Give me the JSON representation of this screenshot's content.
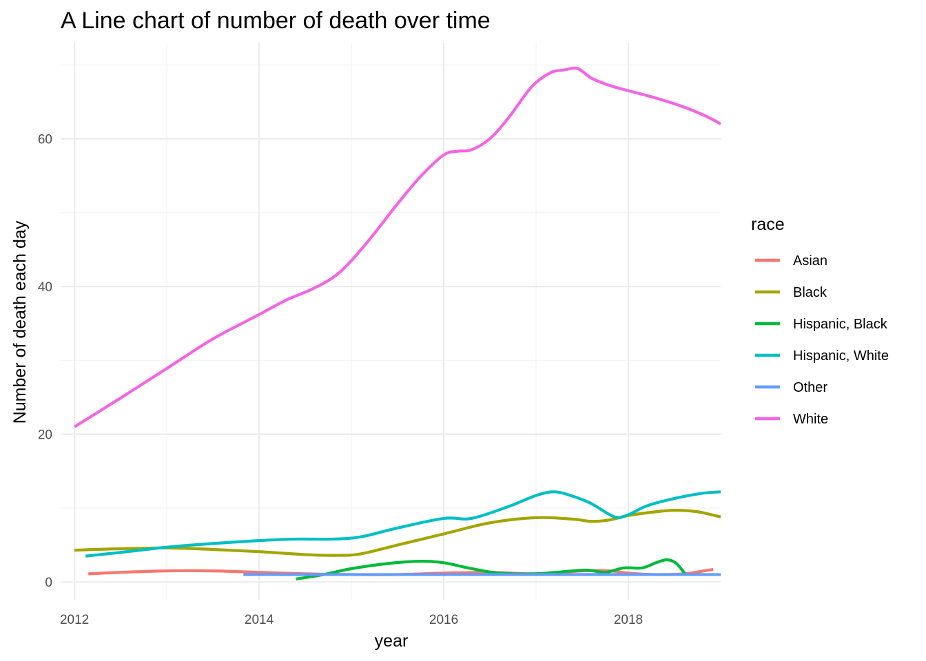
{
  "chart_data": {
    "type": "line",
    "title": "A Line chart of number of death over time",
    "xlabel": "year",
    "ylabel": "Number of death each day",
    "xlim": [
      2011.85,
      2019.0
    ],
    "ylim": [
      -2.5,
      73
    ],
    "x_ticks": [
      "2012",
      "2014",
      "2016",
      "2018"
    ],
    "y_ticks": [
      "0",
      "20",
      "40",
      "60"
    ],
    "grid": true,
    "legend": {
      "title": "race",
      "position": "right"
    },
    "series": [
      {
        "name": "Asian",
        "color": "#F8766D",
        "points": [
          [
            2012.15,
            1.1
          ],
          [
            2012.5,
            1.3
          ],
          [
            2013.0,
            1.5
          ],
          [
            2013.5,
            1.5
          ],
          [
            2014.0,
            1.3
          ],
          [
            2014.5,
            1.1
          ],
          [
            2015.0,
            1.0
          ],
          [
            2015.5,
            1.0
          ],
          [
            2016.0,
            1.2
          ],
          [
            2016.5,
            1.3
          ],
          [
            2017.0,
            1.1
          ],
          [
            2017.5,
            1.5
          ],
          [
            2017.8,
            1.5
          ],
          [
            2018.0,
            1.2
          ],
          [
            2018.3,
            1.0
          ],
          [
            2018.6,
            1.1
          ],
          [
            2018.92,
            1.7
          ]
        ]
      },
      {
        "name": "Black",
        "color": "#A3A500",
        "points": [
          [
            2012.0,
            4.3
          ],
          [
            2012.5,
            4.5
          ],
          [
            2013.0,
            4.6
          ],
          [
            2013.5,
            4.4
          ],
          [
            2014.0,
            4.1
          ],
          [
            2014.5,
            3.7
          ],
          [
            2014.85,
            3.6
          ],
          [
            2015.1,
            3.8
          ],
          [
            2015.5,
            5.0
          ],
          [
            2016.0,
            6.5
          ],
          [
            2016.5,
            8.0
          ],
          [
            2017.0,
            8.7
          ],
          [
            2017.4,
            8.5
          ],
          [
            2017.6,
            8.2
          ],
          [
            2017.8,
            8.4
          ],
          [
            2018.0,
            9.0
          ],
          [
            2018.3,
            9.5
          ],
          [
            2018.5,
            9.7
          ],
          [
            2018.75,
            9.5
          ],
          [
            2019.0,
            8.8
          ]
        ]
      },
      {
        "name": "Hispanic, Black",
        "color": "#00BA38",
        "points": [
          [
            2014.4,
            0.4
          ],
          [
            2014.7,
            1.0
          ],
          [
            2015.0,
            1.8
          ],
          [
            2015.4,
            2.5
          ],
          [
            2015.75,
            2.8
          ],
          [
            2016.0,
            2.6
          ],
          [
            2016.3,
            1.8
          ],
          [
            2016.6,
            1.2
          ],
          [
            2017.0,
            1.1
          ],
          [
            2017.3,
            1.4
          ],
          [
            2017.55,
            1.6
          ],
          [
            2017.75,
            1.3
          ],
          [
            2017.95,
            1.9
          ],
          [
            2018.15,
            1.9
          ],
          [
            2018.3,
            2.6
          ],
          [
            2018.42,
            3.0
          ],
          [
            2018.52,
            2.5
          ],
          [
            2018.62,
            1.0
          ]
        ]
      },
      {
        "name": "Hispanic, White",
        "color": "#00BFC4",
        "points": [
          [
            2012.12,
            3.5
          ],
          [
            2012.5,
            4.0
          ],
          [
            2013.0,
            4.7
          ],
          [
            2013.5,
            5.2
          ],
          [
            2014.0,
            5.6
          ],
          [
            2014.4,
            5.8
          ],
          [
            2014.8,
            5.8
          ],
          [
            2015.1,
            6.1
          ],
          [
            2015.5,
            7.3
          ],
          [
            2016.0,
            8.6
          ],
          [
            2016.3,
            8.6
          ],
          [
            2016.7,
            10.2
          ],
          [
            2017.0,
            11.7
          ],
          [
            2017.2,
            12.2
          ],
          [
            2017.4,
            11.6
          ],
          [
            2017.6,
            10.6
          ],
          [
            2017.85,
            8.8
          ],
          [
            2018.0,
            9.1
          ],
          [
            2018.2,
            10.3
          ],
          [
            2018.5,
            11.3
          ],
          [
            2018.8,
            12.0
          ],
          [
            2019.0,
            12.2
          ]
        ]
      },
      {
        "name": "Other",
        "color": "#619CFF",
        "points": [
          [
            2013.83,
            1.0
          ],
          [
            2014.5,
            1.0
          ],
          [
            2015.0,
            1.0
          ],
          [
            2015.5,
            1.0
          ],
          [
            2016.0,
            1.0
          ],
          [
            2016.5,
            1.0
          ],
          [
            2017.0,
            1.0
          ],
          [
            2017.5,
            1.0
          ],
          [
            2018.0,
            1.0
          ],
          [
            2018.5,
            1.0
          ],
          [
            2019.0,
            1.0
          ]
        ]
      },
      {
        "name": "White",
        "color": "#F564E3",
        "points": [
          [
            2012.0,
            21.0
          ],
          [
            2012.5,
            24.9
          ],
          [
            2013.0,
            28.9
          ],
          [
            2013.5,
            32.9
          ],
          [
            2014.0,
            36.2
          ],
          [
            2014.3,
            38.2
          ],
          [
            2014.55,
            39.5
          ],
          [
            2014.8,
            41.2
          ],
          [
            2015.0,
            43.5
          ],
          [
            2015.25,
            47.2
          ],
          [
            2015.5,
            51.2
          ],
          [
            2015.75,
            54.9
          ],
          [
            2016.0,
            57.8
          ],
          [
            2016.15,
            58.3
          ],
          [
            2016.3,
            58.5
          ],
          [
            2016.5,
            60.0
          ],
          [
            2016.7,
            62.8
          ],
          [
            2016.95,
            67.0
          ],
          [
            2017.15,
            68.9
          ],
          [
            2017.3,
            69.3
          ],
          [
            2017.45,
            69.5
          ],
          [
            2017.6,
            68.2
          ],
          [
            2017.8,
            67.2
          ],
          [
            2018.0,
            66.5
          ],
          [
            2018.3,
            65.5
          ],
          [
            2018.6,
            64.3
          ],
          [
            2018.85,
            63.0
          ],
          [
            2019.0,
            62.0
          ]
        ]
      }
    ]
  }
}
